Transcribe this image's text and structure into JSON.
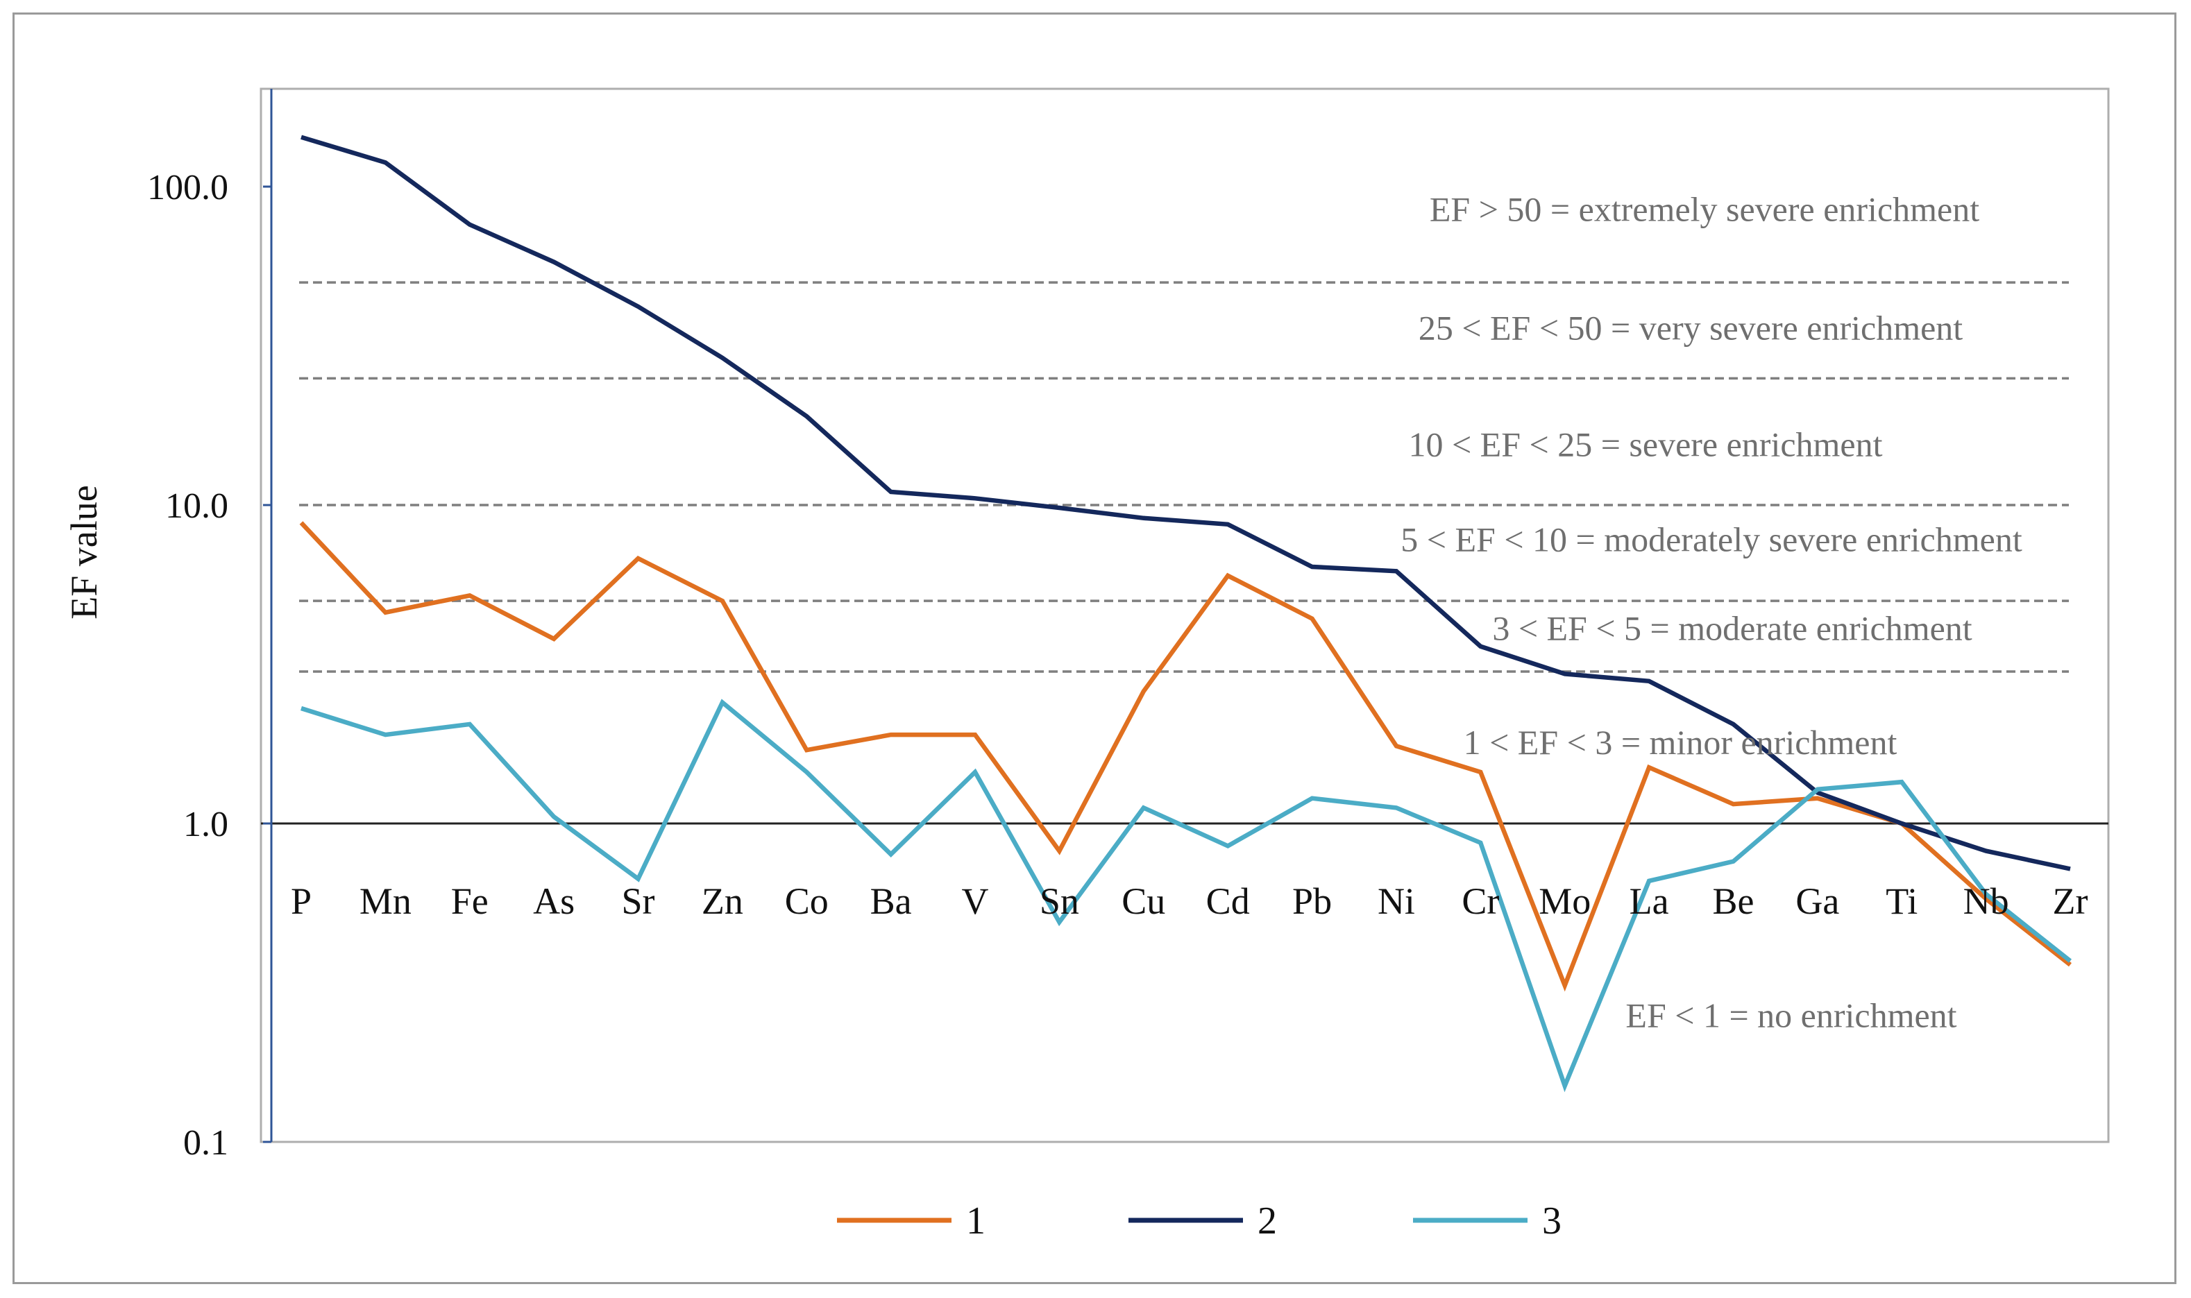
{
  "chart_data": {
    "type": "line",
    "scale": "log",
    "ylabel": "EF value",
    "xlabel": "",
    "ylim": [
      0.1,
      200
    ],
    "yticks": [
      0.1,
      1.0,
      10.0,
      100.0
    ],
    "ytick_labels": [
      "0.1",
      "1.0",
      "10.0",
      "100.0"
    ],
    "categories": [
      "P",
      "Mn",
      "Fe",
      "As",
      "Sr",
      "Zn",
      "Co",
      "Ba",
      "V",
      "Sn",
      "Cu",
      "Cd",
      "Pb",
      "Ni",
      "Cr",
      "Mo",
      "La",
      "Be",
      "Ga",
      "Ti",
      "Nb",
      "Zr"
    ],
    "series": [
      {
        "name": "1",
        "color": "#e07020",
        "values": [
          8.8,
          4.6,
          5.2,
          3.8,
          6.8,
          5.0,
          1.7,
          1.9,
          1.9,
          0.82,
          2.6,
          6.0,
          4.4,
          1.75,
          1.45,
          0.31,
          1.5,
          1.15,
          1.2,
          1.0,
          0.58,
          0.36
        ]
      },
      {
        "name": "2",
        "color": "#14285c",
        "values": [
          143,
          119,
          76,
          58,
          42,
          29,
          19,
          11,
          10.5,
          9.8,
          9.1,
          8.7,
          6.4,
          6.2,
          3.6,
          2.95,
          2.8,
          2.05,
          1.25,
          1.0,
          0.82,
          0.72
        ]
      },
      {
        "name": "3",
        "color": "#4bacc6",
        "values": [
          2.3,
          1.9,
          2.05,
          1.05,
          0.67,
          2.4,
          1.45,
          0.8,
          1.45,
          0.49,
          1.12,
          0.85,
          1.2,
          1.12,
          0.87,
          0.15,
          0.66,
          0.76,
          1.28,
          1.35,
          0.6,
          0.37
        ]
      }
    ],
    "thresholds": [
      {
        "value": 50,
        "style": "dashed"
      },
      {
        "value": 25,
        "style": "dashed"
      },
      {
        "value": 10,
        "style": "dashed"
      },
      {
        "value": 5,
        "style": "dashed"
      },
      {
        "value": 3,
        "style": "dashed"
      },
      {
        "value": 1,
        "style": "solid"
      }
    ],
    "annotations": [
      {
        "text": "EF > 50 = extremely severe enrichment",
        "y": 85
      },
      {
        "text": "25 < EF < 50 = very severe enrichment",
        "y": 36
      },
      {
        "text": "10 < EF < 25 = severe enrichment",
        "y": 15.5
      },
      {
        "text": "5 < EF < 10 = moderately severe enrichment",
        "y": 7.8
      },
      {
        "text": "3 < EF < 5 = moderate enrichment",
        "y": 4.1
      },
      {
        "text": "1 < EF < 3 = minor enrichment",
        "y": 1.8
      },
      {
        "text": "EF < 1 = no enrichment",
        "y": 0.25
      }
    ],
    "legend_position": "bottom-center"
  }
}
